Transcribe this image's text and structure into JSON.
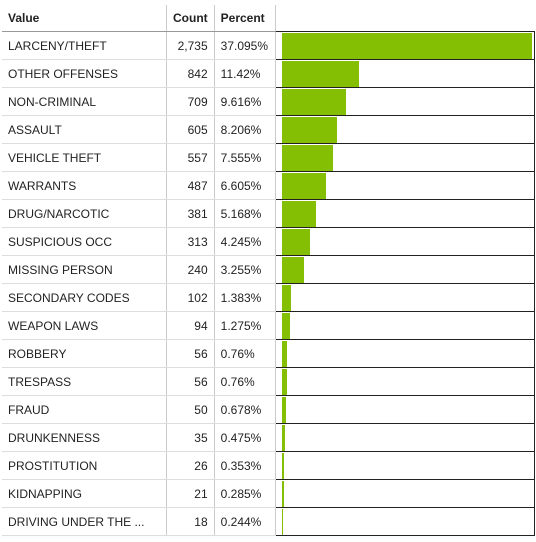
{
  "table": {
    "headers": {
      "value": "Value",
      "count": "Count",
      "percent": "Percent"
    },
    "rows": [
      {
        "value": "LARCENY/THEFT",
        "count": "2,735",
        "percent": "37.095%",
        "fraction": 0.37095
      },
      {
        "value": "OTHER OFFENSES",
        "count": "842",
        "percent": "11.42%",
        "fraction": 0.1142
      },
      {
        "value": "NON-CRIMINAL",
        "count": "709",
        "percent": "9.616%",
        "fraction": 0.09616
      },
      {
        "value": "ASSAULT",
        "count": "605",
        "percent": "8.206%",
        "fraction": 0.08206
      },
      {
        "value": "VEHICLE THEFT",
        "count": "557",
        "percent": "7.555%",
        "fraction": 0.07555
      },
      {
        "value": "WARRANTS",
        "count": "487",
        "percent": "6.605%",
        "fraction": 0.06605
      },
      {
        "value": "DRUG/NARCOTIC",
        "count": "381",
        "percent": "5.168%",
        "fraction": 0.05168
      },
      {
        "value": "SUSPICIOUS OCC",
        "count": "313",
        "percent": "4.245%",
        "fraction": 0.04245
      },
      {
        "value": "MISSING PERSON",
        "count": "240",
        "percent": "3.255%",
        "fraction": 0.03255
      },
      {
        "value": "SECONDARY CODES",
        "count": "102",
        "percent": "1.383%",
        "fraction": 0.01383
      },
      {
        "value": "WEAPON LAWS",
        "count": "94",
        "percent": "1.275%",
        "fraction": 0.01275
      },
      {
        "value": "ROBBERY",
        "count": "56",
        "percent": "0.76%",
        "fraction": 0.0076
      },
      {
        "value": "TRESPASS",
        "count": "56",
        "percent": "0.76%",
        "fraction": 0.0076
      },
      {
        "value": "FRAUD",
        "count": "50",
        "percent": "0.678%",
        "fraction": 0.00678
      },
      {
        "value": "DRUNKENNESS",
        "count": "35",
        "percent": "0.475%",
        "fraction": 0.00475
      },
      {
        "value": "PROSTITUTION",
        "count": "26",
        "percent": "0.353%",
        "fraction": 0.00353
      },
      {
        "value": "KIDNAPPING",
        "count": "21",
        "percent": "0.285%",
        "fraction": 0.00285
      },
      {
        "value": "DRIVING UNDER THE ...",
        "count": "18",
        "percent": "0.244%",
        "fraction": 0.00244
      }
    ]
  },
  "colors": {
    "bar": "#84bf03"
  }
}
